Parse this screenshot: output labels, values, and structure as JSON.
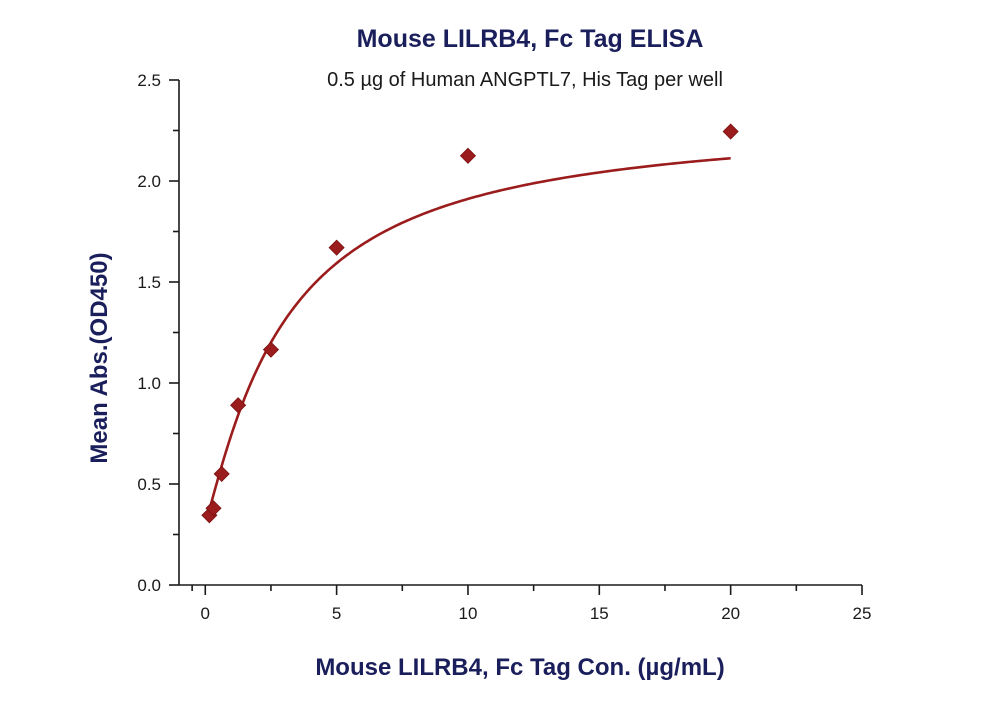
{
  "chart_data": {
    "type": "scatter",
    "title": "Mouse LILRB4, Fc Tag ELISA",
    "subtitle": "0.5 µg of Human ANGPTL7, His Tag per well",
    "xlabel": "Mouse LILRB4, Fc Tag Con. (µg/mL)",
    "ylabel": "Mean Abs.(OD450)",
    "xlim": [
      -1,
      25
    ],
    "ylim": [
      0,
      2.5
    ],
    "x_ticks": [
      0,
      5,
      10,
      15,
      20,
      25
    ],
    "y_ticks": [
      0.0,
      0.5,
      1.0,
      1.5,
      2.0,
      2.5
    ],
    "x_tick_labels": [
      "0",
      "5",
      "10",
      "15",
      "20",
      "25"
    ],
    "y_tick_labels": [
      "0.0",
      "0.5",
      "1.0",
      "1.5",
      "2.0",
      "2.5"
    ],
    "grid": false,
    "series": [
      {
        "marker": "diamond",
        "color": "#9b1c1c",
        "x": [
          0.156,
          0.313,
          0.625,
          1.25,
          2.5,
          5,
          10,
          20
        ],
        "y": [
          0.345,
          0.38,
          0.55,
          0.89,
          1.165,
          1.67,
          2.125,
          2.245
        ],
        "fit": "four-parameter-logistic"
      }
    ]
  }
}
